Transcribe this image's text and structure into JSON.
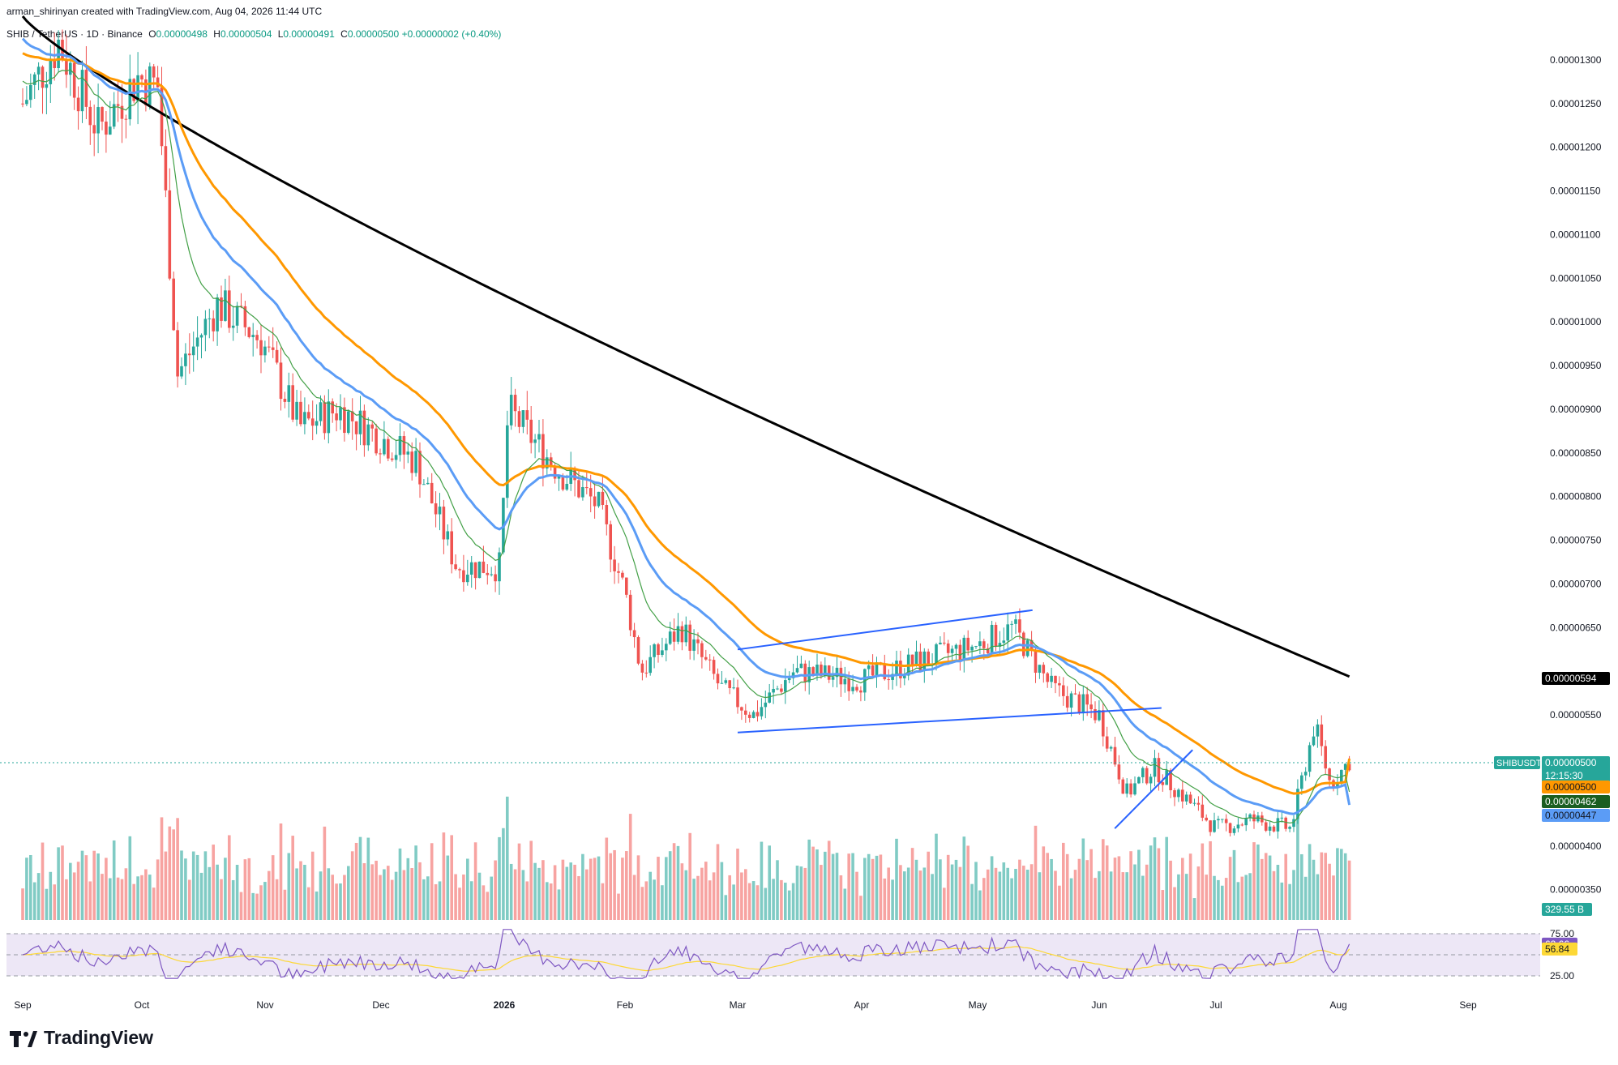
{
  "header": {
    "creator": "arman_shirinyan created with TradingView.com, Aug 04, 2026 11:44 UTC",
    "symbol": "SHIB / TetherUS · 1D · Binance",
    "open_label": "O",
    "open": "0.00000498",
    "high_label": "H",
    "high": "0.00000504",
    "low_label": "L",
    "low": "0.00000491",
    "close_label": "C",
    "close": "0.00000500",
    "change": "+0.00000002 (+0.40%)"
  },
  "brand": {
    "name": "TradingView"
  },
  "colors": {
    "up": "#26a69a",
    "down": "#ef5350",
    "up_vol": "#80cbc4",
    "down_vol": "#f7a3a1",
    "ma_orange": "#ff9800",
    "ma_black": "#000000",
    "ma_blue": "#5b9cf6",
    "ma_green": "#43a047",
    "trendline": "#2962ff",
    "rsi_line": "#7e57c2",
    "rsi_ma": "#fdd835",
    "rsi_band": "#ede7f6"
  },
  "chart_data": {
    "type": "candlestick",
    "symbol": "SHIBUSDT",
    "timeframe": "1D",
    "x_labels": [
      "Sep",
      "Oct",
      "Nov",
      "Dec",
      "2026",
      "Feb",
      "Mar",
      "Apr",
      "May",
      "Jun",
      "Jul",
      "Aug",
      "Sep"
    ],
    "y_ticks": [
      "0.00001300",
      "0.00001250",
      "0.00001200",
      "0.00001150",
      "0.00001100",
      "0.00001050",
      "0.00001000",
      "0.00000950",
      "0.00000900",
      "0.00000850",
      "0.00000800",
      "0.00000750",
      "0.00000700",
      "0.00000650",
      "0.00000550",
      "0.00000400",
      "0.00000350"
    ],
    "ylim": [
      3.2e-06,
      1.35e-05
    ],
    "price_path": [
      {
        "t": "Sep 01",
        "p": 1.25e-05
      },
      {
        "t": "Sep 10",
        "p": 1.32e-05
      },
      {
        "t": "Sep 20",
        "p": 1.22e-05
      },
      {
        "t": "Sep 30",
        "p": 1.28e-05
      },
      {
        "t": "Oct 05",
        "p": 1.27e-05
      },
      {
        "t": "Oct 10",
        "p": 9.4e-06
      },
      {
        "t": "Oct 20",
        "p": 1.02e-05
      },
      {
        "t": "Oct 31",
        "p": 9.8e-06
      },
      {
        "t": "Nov 10",
        "p": 8.8e-06
      },
      {
        "t": "Nov 20",
        "p": 9e-06
      },
      {
        "t": "Nov 30",
        "p": 8.7e-06
      },
      {
        "t": "Dec 10",
        "p": 8.4e-06
      },
      {
        "t": "Dec 20",
        "p": 7.2e-06
      },
      {
        "t": "Dec 31",
        "p": 7.2e-06
      },
      {
        "t": "Jan 02",
        "p": 9e-06
      },
      {
        "t": "Jan 15",
        "p": 8.3e-06
      },
      {
        "t": "Jan 25",
        "p": 7.9e-06
      },
      {
        "t": "Feb 01",
        "p": 6.9e-06
      },
      {
        "t": "Feb 05",
        "p": 6e-06
      },
      {
        "t": "Feb 15",
        "p": 6.5e-06
      },
      {
        "t": "Feb 25",
        "p": 5.8e-06
      },
      {
        "t": "Mar 05",
        "p": 5.5e-06
      },
      {
        "t": "Mar 15",
        "p": 6e-06
      },
      {
        "t": "Apr 01",
        "p": 5.9e-06
      },
      {
        "t": "Apr 15",
        "p": 6.1e-06
      },
      {
        "t": "May 01",
        "p": 6.3e-06
      },
      {
        "t": "May 10",
        "p": 6.5e-06
      },
      {
        "t": "May 20",
        "p": 5.8e-06
      },
      {
        "t": "Jun 01",
        "p": 5.5e-06
      },
      {
        "t": "Jun 08",
        "p": 4.6e-06
      },
      {
        "t": "Jun 15",
        "p": 4.9e-06
      },
      {
        "t": "Jun 22",
        "p": 4.6e-06
      },
      {
        "t": "Jul 01",
        "p": 4.2e-06
      },
      {
        "t": "Jul 10",
        "p": 4.3e-06
      },
      {
        "t": "Jul 20",
        "p": 4.2e-06
      },
      {
        "t": "Jul 26",
        "p": 5.4e-06
      },
      {
        "t": "Jul 30",
        "p": 4.7e-06
      },
      {
        "t": "Aug 04",
        "p": 5e-06
      }
    ],
    "moving_averages": [
      {
        "color": "black",
        "start": 1.35e-05,
        "end": 5.94e-06,
        "last_label": "0.00000594"
      },
      {
        "color": "orange",
        "start": 1.31e-05,
        "end": 5e-06,
        "last_label": "0.00000500"
      },
      {
        "color": "green",
        "start": 1.28e-05,
        "end": 4.62e-06,
        "last_label": "0.00000462"
      },
      {
        "color": "blue",
        "start": 1.33e-05,
        "end": 4.47e-06,
        "last_label": "0.00000447"
      }
    ],
    "price_tag": {
      "symbol": "SHIBUSDT",
      "value": "0.00000500",
      "countdown": "12:15:30"
    },
    "volume": {
      "last_label": "329.55 B"
    },
    "trendlines": [
      {
        "from": {
          "t": "Mar 01",
          "p": 6.25e-06
        },
        "to": {
          "t": "May 15",
          "p": 6.7e-06
        }
      },
      {
        "from": {
          "t": "Mar 01",
          "p": 5.3e-06
        },
        "to": {
          "t": "Jun 17",
          "p": 5.58e-06
        }
      },
      {
        "from": {
          "t": "Jun 05",
          "p": 4.2e-06
        },
        "to": {
          "t": "Jun 25",
          "p": 5.1e-06
        }
      }
    ],
    "rsi": {
      "levels": [
        "75.00",
        "25.00"
      ],
      "value": "62.66",
      "ma_value": "56.84"
    }
  }
}
